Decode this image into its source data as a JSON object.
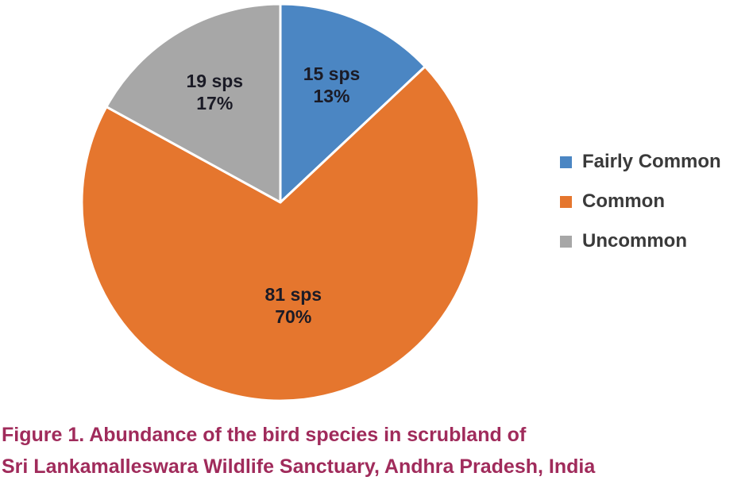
{
  "chart_data": {
    "type": "pie",
    "title": "",
    "categories": [
      "Fairly Common",
      "Common",
      "Uncommon"
    ],
    "values": [
      15,
      81,
      19
    ],
    "percents": [
      13,
      70,
      17
    ],
    "slices": [
      {
        "label": "Fairly Common",
        "count": 15,
        "percent": 13,
        "count_label": "15 sps",
        "percent_label": "13%",
        "color": "#4B86C3"
      },
      {
        "label": "Common",
        "count": 81,
        "percent": 70,
        "count_label": "81 sps",
        "percent_label": "70%",
        "color": "#E5762E"
      },
      {
        "label": "Uncommon",
        "count": 19,
        "percent": 17,
        "count_label": "19 sps",
        "percent_label": "17%",
        "color": "#A7A7A7"
      }
    ],
    "units_suffix": "sps",
    "start_angle": "top",
    "direction": "clockwise",
    "legend_position": "right",
    "slice_label_color": "#1B1B26",
    "legend_text_color": "#3A3A3A",
    "slice_border_color": "#FFFFFF"
  },
  "caption": {
    "line1": "Figure 1. Abundance of the bird species in scrubland of",
    "line2": "Sri Lankamalleswara Wildlife Sanctuary, Andhra Pradesh, India",
    "color": "#A02B5B"
  }
}
